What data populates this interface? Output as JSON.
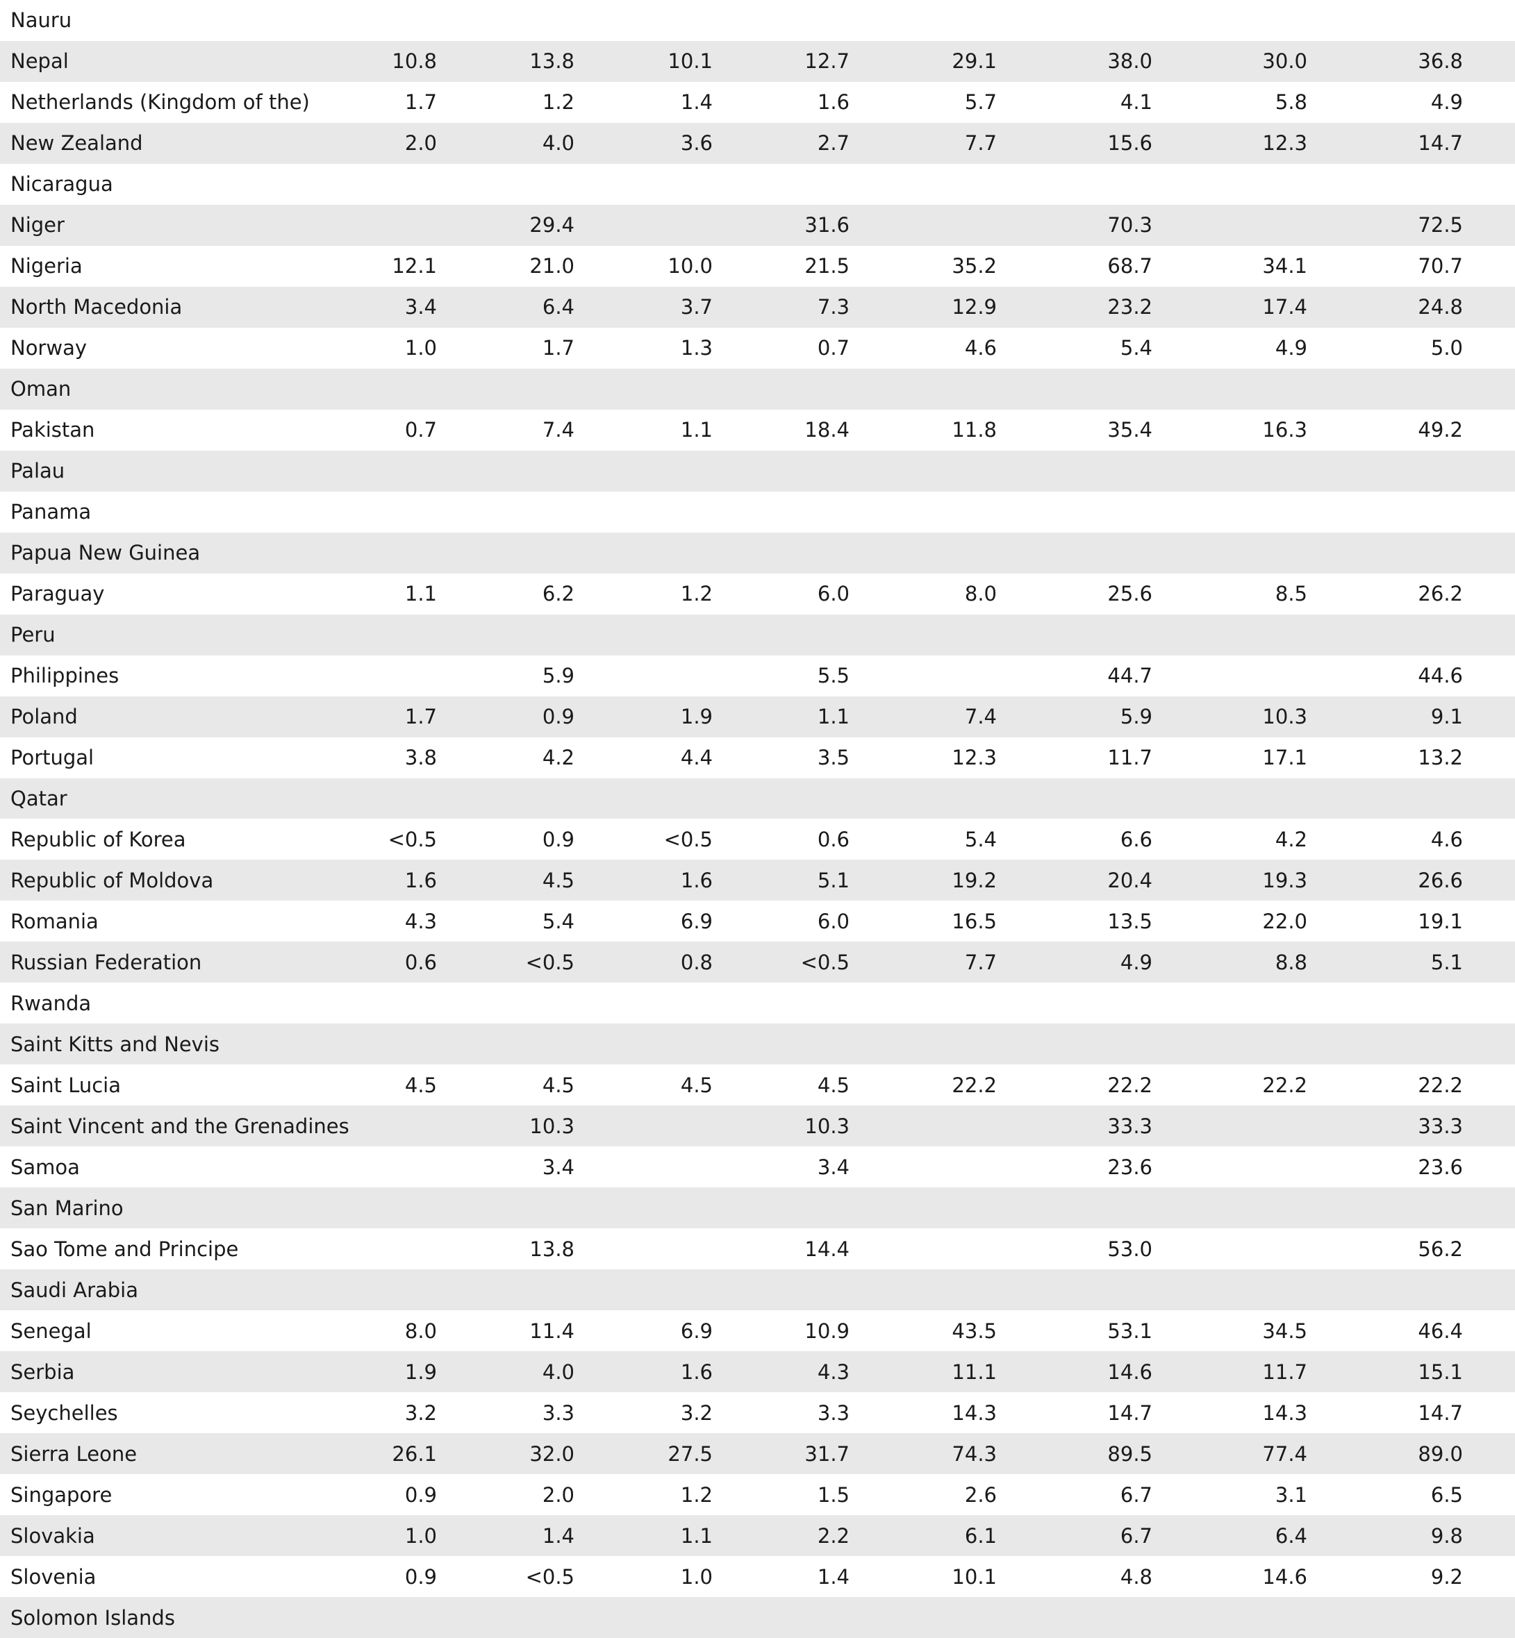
{
  "table": {
    "rows": [
      [
        "Nauru",
        null,
        null,
        null,
        null,
        null,
        null,
        null,
        null
      ],
      [
        "Nepal",
        "10.8",
        "13.8",
        "10.1",
        "12.7",
        "29.1",
        "38.0",
        "30.0",
        "36.8"
      ],
      [
        "Netherlands (Kingdom of the)",
        "1.7",
        "1.2",
        "1.4",
        "1.6",
        "5.7",
        "4.1",
        "5.8",
        "4.9"
      ],
      [
        "New Zealand",
        "2.0",
        "4.0",
        "3.6",
        "2.7",
        "7.7",
        "15.6",
        "12.3",
        "14.7"
      ],
      [
        "Nicaragua",
        null,
        null,
        null,
        null,
        null,
        null,
        null,
        null
      ],
      [
        "Niger",
        null,
        "29.4",
        null,
        "31.6",
        null,
        "70.3",
        null,
        "72.5"
      ],
      [
        "Nigeria",
        "12.1",
        "21.0",
        "10.0",
        "21.5",
        "35.2",
        "68.7",
        "34.1",
        "70.7"
      ],
      [
        "North Macedonia",
        "3.4",
        "6.4",
        "3.7",
        "7.3",
        "12.9",
        "23.2",
        "17.4",
        "24.8"
      ],
      [
        "Norway",
        "1.0",
        "1.7",
        "1.3",
        "0.7",
        "4.6",
        "5.4",
        "4.9",
        "5.0"
      ],
      [
        "Oman",
        null,
        null,
        null,
        null,
        null,
        null,
        null,
        null
      ],
      [
        "Pakistan",
        "0.7",
        "7.4",
        "1.1",
        "18.4",
        "11.8",
        "35.4",
        "16.3",
        "49.2"
      ],
      [
        "Palau",
        null,
        null,
        null,
        null,
        null,
        null,
        null,
        null
      ],
      [
        "Panama",
        null,
        null,
        null,
        null,
        null,
        null,
        null,
        null
      ],
      [
        "Papua New Guinea",
        null,
        null,
        null,
        null,
        null,
        null,
        null,
        null
      ],
      [
        "Paraguay",
        "1.1",
        "6.2",
        "1.2",
        "6.0",
        "8.0",
        "25.6",
        "8.5",
        "26.2"
      ],
      [
        "Peru",
        null,
        null,
        null,
        null,
        null,
        null,
        null,
        null
      ],
      [
        "Philippines",
        null,
        "5.9",
        null,
        "5.5",
        null,
        "44.7",
        null,
        "44.6"
      ],
      [
        "Poland",
        "1.7",
        "0.9",
        "1.9",
        "1.1",
        "7.4",
        "5.9",
        "10.3",
        "9.1"
      ],
      [
        "Portugal",
        "3.8",
        "4.2",
        "4.4",
        "3.5",
        "12.3",
        "11.7",
        "17.1",
        "13.2"
      ],
      [
        "Qatar",
        null,
        null,
        null,
        null,
        null,
        null,
        null,
        null
      ],
      [
        "Republic of Korea",
        "<0.5",
        "0.9",
        "<0.5",
        "0.6",
        "5.4",
        "6.6",
        "4.2",
        "4.6"
      ],
      [
        "Republic of Moldova",
        "1.6",
        "4.5",
        "1.6",
        "5.1",
        "19.2",
        "20.4",
        "19.3",
        "26.6"
      ],
      [
        "Romania",
        "4.3",
        "5.4",
        "6.9",
        "6.0",
        "16.5",
        "13.5",
        "22.0",
        "19.1"
      ],
      [
        "Russian Federation",
        "0.6",
        "<0.5",
        "0.8",
        "<0.5",
        "7.7",
        "4.9",
        "8.8",
        "5.1"
      ],
      [
        "Rwanda",
        null,
        null,
        null,
        null,
        null,
        null,
        null,
        null
      ],
      [
        "Saint Kitts and Nevis",
        null,
        null,
        null,
        null,
        null,
        null,
        null,
        null
      ],
      [
        "Saint Lucia",
        "4.5",
        "4.5",
        "4.5",
        "4.5",
        "22.2",
        "22.2",
        "22.2",
        "22.2"
      ],
      [
        "Saint Vincent and the Grenadines",
        null,
        "10.3",
        null,
        "10.3",
        null,
        "33.3",
        null,
        "33.3"
      ],
      [
        "Samoa",
        null,
        "3.4",
        null,
        "3.4",
        null,
        "23.6",
        null,
        "23.6"
      ],
      [
        "San Marino",
        null,
        null,
        null,
        null,
        null,
        null,
        null,
        null
      ],
      [
        "Sao Tome and Principe",
        null,
        "13.8",
        null,
        "14.4",
        null,
        "53.0",
        null,
        "56.2"
      ],
      [
        "Saudi Arabia",
        null,
        null,
        null,
        null,
        null,
        null,
        null,
        null
      ],
      [
        "Senegal",
        "8.0",
        "11.4",
        "6.9",
        "10.9",
        "43.5",
        "53.1",
        "34.5",
        "46.4"
      ],
      [
        "Serbia",
        "1.9",
        "4.0",
        "1.6",
        "4.3",
        "11.1",
        "14.6",
        "11.7",
        "15.1"
      ],
      [
        "Seychelles",
        "3.2",
        "3.3",
        "3.2",
        "3.3",
        "14.3",
        "14.7",
        "14.3",
        "14.7"
      ],
      [
        "Sierra Leone",
        "26.1",
        "32.0",
        "27.5",
        "31.7",
        "74.3",
        "89.5",
        "77.4",
        "89.0"
      ],
      [
        "Singapore",
        "0.9",
        "2.0",
        "1.2",
        "1.5",
        "2.6",
        "6.7",
        "3.1",
        "6.5"
      ],
      [
        "Slovakia",
        "1.0",
        "1.4",
        "1.1",
        "2.2",
        "6.1",
        "6.7",
        "6.4",
        "9.8"
      ],
      [
        "Slovenia",
        "0.9",
        "<0.5",
        "1.0",
        "1.4",
        "10.1",
        "4.8",
        "14.6",
        "9.2"
      ],
      [
        "Solomon Islands",
        null,
        null,
        null,
        null,
        null,
        null,
        null,
        null
      ]
    ]
  }
}
